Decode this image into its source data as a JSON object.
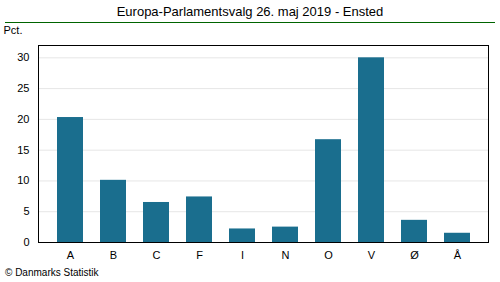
{
  "chart_data": {
    "type": "bar",
    "title": "Europa-Parlamentsvalg 26. maj 2019 - Ensted",
    "categories": [
      "A",
      "B",
      "C",
      "F",
      "I",
      "N",
      "O",
      "V",
      "Ø",
      "Å"
    ],
    "values": [
      20.3,
      10.1,
      6.5,
      7.4,
      2.2,
      2.5,
      16.7,
      30.0,
      3.6,
      1.5
    ],
    "color": "#1a6e8e",
    "ylabel": "Pct.",
    "ylim": [
      0,
      32
    ],
    "yticks": [
      0,
      5,
      10,
      15,
      20,
      25,
      30
    ],
    "grid": true,
    "caption": "© Danmarks Statistik"
  }
}
